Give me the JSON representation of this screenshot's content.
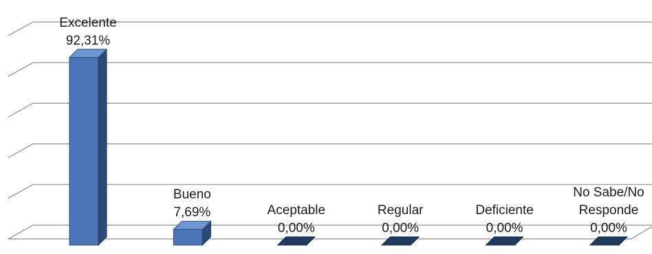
{
  "chart_data": {
    "type": "bar",
    "categories": [
      "Excelente",
      "Bueno",
      "Aceptable",
      "Regular",
      "Deficiente",
      "No Sabe/No Responde"
    ],
    "category_label_lines": [
      [
        "Excelente"
      ],
      [
        "Bueno"
      ],
      [
        "Aceptable"
      ],
      [
        "Regular"
      ],
      [
        "Deficiente"
      ],
      [
        "No Sabe/No",
        "Responde"
      ]
    ],
    "values": [
      92.31,
      7.69,
      0.0,
      0.0,
      0.0,
      0.0
    ],
    "value_labels": [
      "92,31%",
      "7,69%",
      "0,00%",
      "0,00%",
      "0,00%",
      "0,00%"
    ],
    "ylim": [
      0,
      100
    ],
    "grid": true,
    "legend": "none",
    "bar_color": "#4a76b8",
    "bar_side_color": "#2b4a78",
    "bar_top_color": "#6f96d2",
    "zero_bar_color": "#1f3a5f"
  }
}
